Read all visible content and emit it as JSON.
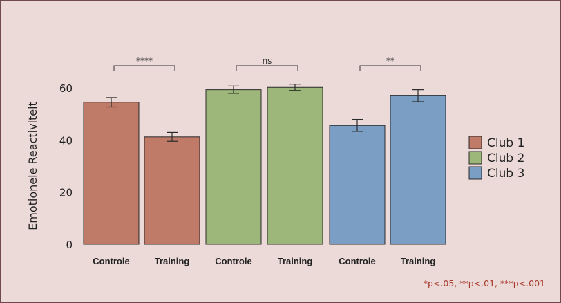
{
  "chart_data": {
    "type": "bar",
    "ylabel": "Emotionele Reactiviteit",
    "xlabel": "",
    "ylim": [
      0,
      60
    ],
    "yticks": [
      0,
      20,
      40,
      60
    ],
    "bars": [
      {
        "club": "Club 1",
        "label": "Controle",
        "value": 54.5,
        "error": 1.8
      },
      {
        "club": "Club 1",
        "label": "Training",
        "value": 41.2,
        "error": 1.7
      },
      {
        "club": "Club 2",
        "label": "Controle",
        "value": 59.3,
        "error": 1.4
      },
      {
        "club": "Club 2",
        "label": "Training",
        "value": 60.2,
        "error": 1.2
      },
      {
        "club": "Club 3",
        "label": "Controle",
        "value": 45.6,
        "error": 2.3
      },
      {
        "club": "Club 3",
        "label": "Training",
        "value": 57.0,
        "error": 2.3
      }
    ],
    "significance": [
      {
        "club": "Club 1",
        "label": "****"
      },
      {
        "club": "Club 2",
        "label": "ns"
      },
      {
        "club": "Club 3",
        "label": "**"
      }
    ],
    "legend": {
      "position": "right",
      "entries": [
        {
          "name": "Club 1",
          "color": "#bf7a68"
        },
        {
          "name": "Club 2",
          "color": "#9db67a"
        },
        {
          "name": "Club 3",
          "color": "#7a9ec4"
        }
      ]
    },
    "footnote": "*p<.05, **p<.01, ***p<.001",
    "grid": false
  }
}
